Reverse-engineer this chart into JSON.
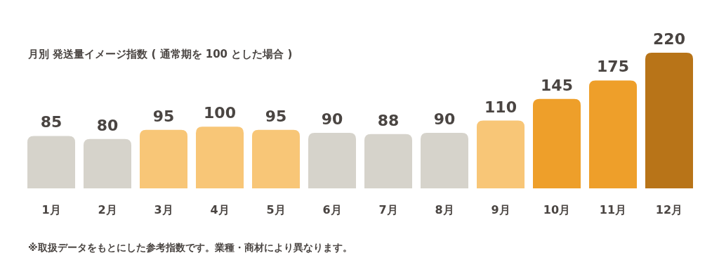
{
  "chart_data": {
    "type": "bar",
    "title": "月別 発送量イメージ指数 ( 通常期を 100 とした場合 )",
    "categories": [
      "1月",
      "2月",
      "3月",
      "4月",
      "5月",
      "6月",
      "7月",
      "8月",
      "9月",
      "10月",
      "11月",
      "12月"
    ],
    "values": [
      85,
      80,
      95,
      100,
      95,
      90,
      88,
      90,
      110,
      145,
      175,
      220
    ],
    "colors": [
      "#d6d3cb",
      "#d6d3cb",
      "#f8c677",
      "#f8c677",
      "#f8c677",
      "#d6d3cb",
      "#d6d3cb",
      "#d6d3cb",
      "#f8c677",
      "#ee9f2a",
      "#ee9f2a",
      "#b87418"
    ],
    "data_labels": true,
    "annotations": [
      "※取扱データをもとにした参考指数です。業種・商材により異なります。"
    ]
  }
}
